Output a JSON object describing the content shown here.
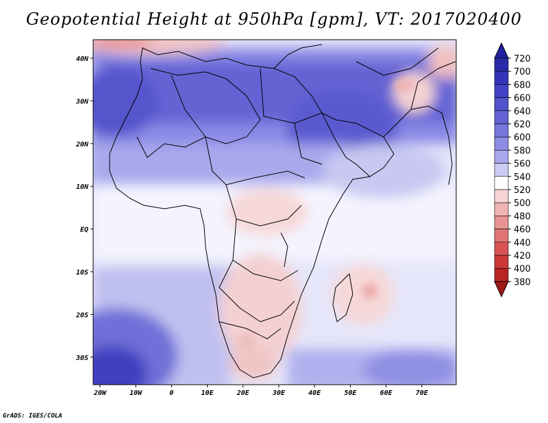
{
  "title": "Geopotential Height at 950hPa [gpm], VT: 2017020400",
  "credit": "GrADS: IGES/COLA",
  "map": {
    "lon_labels": [
      "20W",
      "10W",
      "0",
      "10E",
      "20E",
      "30E",
      "40E",
      "50E",
      "60E",
      "70E"
    ],
    "lat_labels": [
      "40N",
      "30N",
      "20N",
      "10N",
      "EQ",
      "10S",
      "20S",
      "30S"
    ]
  },
  "colorbar": {
    "levels": [
      "720",
      "700",
      "680",
      "660",
      "640",
      "620",
      "600",
      "580",
      "560",
      "540",
      "520",
      "500",
      "480",
      "460",
      "440",
      "420",
      "400",
      "380"
    ],
    "colors": [
      "#2a2aa8",
      "#3434b8",
      "#4242c4",
      "#5252cc",
      "#6262d4",
      "#7676dc",
      "#8c8ce4",
      "#a8a8ec",
      "#ccccf4",
      "#ffffff",
      "#f8d4d4",
      "#f0b4b4",
      "#e89494",
      "#e07474",
      "#d85454",
      "#cc3838",
      "#b82424"
    ],
    "top_color": "#2020a0",
    "bottom_color": "#a01818"
  }
}
